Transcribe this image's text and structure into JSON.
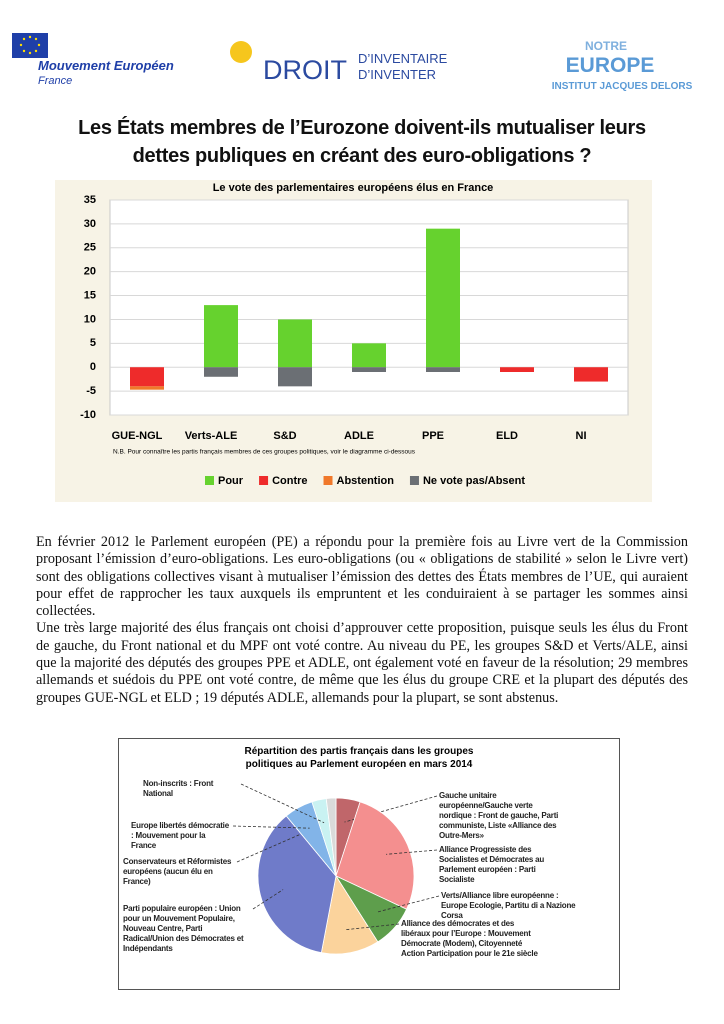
{
  "header": {
    "logo1_line1": "Mouvement Européen",
    "logo1_line2": "France",
    "logo2_big": "DROIT",
    "logo2_small1": "D’INVENTAIRE",
    "logo2_small2": "D’INVENTER",
    "logo3_top": "NOTRE",
    "logo3_mid": "EUROPE",
    "logo3_bottom": "INSTITUT JACQUES DELORS"
  },
  "title": "Les États membres de l’Eurozone doivent-ils mutualiser leurs dettes publiques en créant des euro-obligations ?",
  "chart_data": [
    {
      "type": "bar",
      "stacked": true,
      "title": "Le vote des parlementaires européens élus en France",
      "note": "N.B. Pour connaître les partis français membres de ces groupes politiques, voir le diagramme ci-dessous",
      "categories": [
        "GUE-NGL",
        "Verts-ALE",
        "S&D",
        "ADLE",
        "PPE",
        "ELD",
        "NI"
      ],
      "series": [
        {
          "name": "Pour",
          "color": "#66d22e",
          "values": [
            0,
            13,
            10,
            5,
            29,
            0,
            0
          ]
        },
        {
          "name": "Contre",
          "color": "#ee2b2b",
          "values": [
            -4,
            0,
            0,
            0,
            0,
            -1,
            -3
          ]
        },
        {
          "name": "Abstention",
          "color": "#f0782a",
          "values": [
            -0.7,
            0,
            0,
            0,
            0,
            0,
            0
          ]
        },
        {
          "name": "Ne vote pas/Absent",
          "color": "#6b6f74",
          "values": [
            0,
            -2,
            -4,
            -1,
            -1,
            0,
            0
          ]
        }
      ],
      "ylim": [
        -10,
        35
      ],
      "yticks": [
        -10,
        -5,
        0,
        5,
        10,
        15,
        20,
        25,
        30,
        35
      ],
      "grid": true,
      "legend": "bottom"
    },
    {
      "type": "pie",
      "title": "Répartition des partis français dans les groupes politiques au Parlement européen en mars 2014",
      "labels": [
        "Gauche unitaire européenne/Gauche verte nordique : Front de gauche, Parti communiste, Liste «Alliance des Outre-Mers»",
        "Alliance Progressiste des Socialistes et Démocrates au Parlement européen : Parti Socialiste",
        "Verts/Alliance libre européenne : Europe Ecologie, Partitu di a Nazione Corsa",
        "Alliance des démocrates et des libéraux pour l’Europe : Mouvement Démocrate (Modem), Citoyenneté Action Participation pour le 21e siècle",
        "Parti populaire européen : Union pour un Mouvement Populaire, Nouveau Centre, Parti Radical/Union des Démocrates et Indépendants",
        "Conservateurs et Réformistes européens (aucun élu en France)",
        "Europe libertés démocratie : Mouvement pour la France",
        "Non-inscrits : Front National",
        null
      ],
      "values": [
        5,
        27,
        9,
        12,
        36,
        0,
        6,
        3,
        2
      ],
      "colors": [
        "#c0666a",
        "#f48f8f",
        "#5e9e4c",
        "#fbd39c",
        "#6f7bc9",
        "#8fa0c0",
        "#82b4e8",
        "#c9f2f2",
        "#dadada"
      ]
    }
  ],
  "body": [
    "En février 2012 le Parlement européen (PE) a répondu pour la première fois au Livre vert de la Commission proposant l’émission d’euro-obligations. Les euro-obligations (ou « obligations de stabilité » selon le Livre vert) sont des obligations collectives visant à mutualiser l’émission des dettes des États membres de l’UE, qui auraient pour effet de rapprocher les taux auxquels ils empruntent et les conduiraient à se partager les sommes ainsi collectées.",
    "Une très large majorité des élus français ont choisi d’approuver cette proposition, puisque seuls les élus du Front de gauche, du Front national et du MPF ont voté contre. Au niveau du PE, les groupes S&D et Verts/ALE, ainsi que la majorité des députés des groupes PPE et ADLE, ont également voté en faveur de la résolution; 29 membres allemands et suédois du PPE ont voté contre, de même que les élus du groupe CRE et la plupart des députés des groupes GUE-NGL et ELD ; 19 députés ADLE, allemands pour la plupart, se sont abstenus."
  ]
}
